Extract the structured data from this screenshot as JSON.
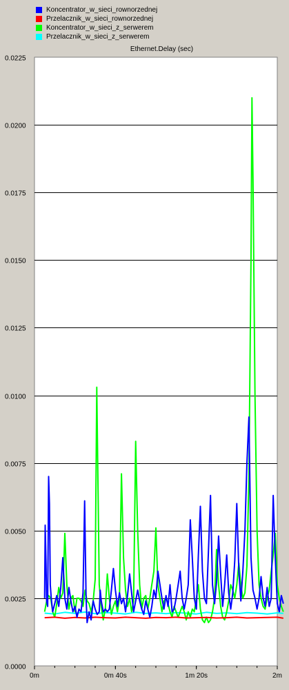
{
  "chart_data": {
    "type": "line",
    "title": "Ethernet.Delay (sec)",
    "xlabel": "",
    "ylabel": "",
    "xlim": [
      0,
      120
    ],
    "ylim": [
      0,
      0.0225
    ],
    "x_ticks": [
      {
        "value": 0,
        "label": "0m"
      },
      {
        "value": 40,
        "label": "0m 40s"
      },
      {
        "value": 80,
        "label": "1m 20s"
      },
      {
        "value": 120,
        "label": "2m"
      }
    ],
    "y_ticks": [
      {
        "value": 0,
        "label": "0.0000"
      },
      {
        "value": 0.0025,
        "label": "0.0025"
      },
      {
        "value": 0.005,
        "label": "0.0050"
      },
      {
        "value": 0.0075,
        "label": "0.0075"
      },
      {
        "value": 0.01,
        "label": "0.0100"
      },
      {
        "value": 0.0125,
        "label": "0.0125"
      },
      {
        "value": 0.015,
        "label": "0.0150"
      },
      {
        "value": 0.0175,
        "label": "0.0175"
      },
      {
        "value": 0.02,
        "label": "0.0200"
      },
      {
        "value": 0.0225,
        "label": "0.0225"
      }
    ],
    "grid": true,
    "legend_position": "top-left",
    "series": [
      {
        "name": "Koncentrator_w_sieci_rownorzednej",
        "color": "#0000ff",
        "points": [
          [
            5,
            0.0025
          ],
          [
            5.3,
            0.0052
          ],
          [
            5.7,
            0.0038
          ],
          [
            6,
            0.0024
          ],
          [
            6.5,
            0.0022
          ],
          [
            7,
            0.007
          ],
          [
            7.4,
            0.006
          ],
          [
            7.8,
            0.003
          ],
          [
            8.3,
            0.0025
          ],
          [
            9,
            0.002
          ],
          [
            10,
            0.0023
          ],
          [
            11,
            0.0026
          ],
          [
            12,
            0.0022
          ],
          [
            13,
            0.0029
          ],
          [
            14,
            0.004
          ],
          [
            15,
            0.0025
          ],
          [
            16,
            0.0021
          ],
          [
            17,
            0.0029
          ],
          [
            18,
            0.0024
          ],
          [
            19,
            0.002
          ],
          [
            20,
            0.0022
          ],
          [
            21,
            0.0018
          ],
          [
            22,
            0.0021
          ],
          [
            23,
            0.002
          ],
          [
            24,
            0.0027
          ],
          [
            24.8,
            0.0061
          ],
          [
            25.5,
            0.0025
          ],
          [
            26,
            0.0016
          ],
          [
            27,
            0.002
          ],
          [
            28,
            0.0017
          ],
          [
            29,
            0.0024
          ],
          [
            30,
            0.0021
          ],
          [
            31,
            0.0019
          ],
          [
            32,
            0.002
          ],
          [
            32.5,
            0.0028
          ],
          [
            33,
            0.0024
          ],
          [
            34,
            0.002
          ],
          [
            35,
            0.0021
          ],
          [
            36,
            0.002
          ],
          [
            37,
            0.0021
          ],
          [
            38,
            0.0028
          ],
          [
            39,
            0.0036
          ],
          [
            40,
            0.0028
          ],
          [
            41,
            0.0022
          ],
          [
            42,
            0.0027
          ],
          [
            43,
            0.0023
          ],
          [
            44,
            0.0025
          ],
          [
            45,
            0.002
          ],
          [
            46,
            0.0026
          ],
          [
            47,
            0.0034
          ],
          [
            48,
            0.0027
          ],
          [
            49,
            0.002
          ],
          [
            50,
            0.0024
          ],
          [
            51,
            0.0028
          ],
          [
            52,
            0.0024
          ],
          [
            53,
            0.0021
          ],
          [
            54,
            0.0019
          ],
          [
            55,
            0.0024
          ],
          [
            56,
            0.0021
          ],
          [
            57,
            0.0018
          ],
          [
            58,
            0.0022
          ],
          [
            59,
            0.0028
          ],
          [
            60,
            0.0025
          ],
          [
            61,
            0.0035
          ],
          [
            62,
            0.003
          ],
          [
            63,
            0.0025
          ],
          [
            64,
            0.0021
          ],
          [
            65,
            0.0026
          ],
          [
            66,
            0.0022
          ],
          [
            67,
            0.003
          ],
          [
            68,
            0.002
          ],
          [
            69,
            0.0021
          ],
          [
            70,
            0.0025
          ],
          [
            71,
            0.003
          ],
          [
            72,
            0.0035
          ],
          [
            73,
            0.0025
          ],
          [
            74,
            0.0021
          ],
          [
            75,
            0.0025
          ],
          [
            76,
            0.003
          ],
          [
            77,
            0.0054
          ],
          [
            78,
            0.004
          ],
          [
            79,
            0.0025
          ],
          [
            80,
            0.0021
          ],
          [
            81,
            0.0041
          ],
          [
            82,
            0.0059
          ],
          [
            83,
            0.0035
          ],
          [
            84,
            0.0025
          ],
          [
            85,
            0.0023
          ],
          [
            86,
            0.0043
          ],
          [
            87,
            0.0063
          ],
          [
            88,
            0.003
          ],
          [
            89,
            0.0023
          ],
          [
            90,
            0.0031
          ],
          [
            91,
            0.0048
          ],
          [
            92,
            0.0034
          ],
          [
            93,
            0.0022
          ],
          [
            94,
            0.003
          ],
          [
            95,
            0.0041
          ],
          [
            96,
            0.0027
          ],
          [
            97,
            0.0021
          ],
          [
            98,
            0.0027
          ],
          [
            99,
            0.0039
          ],
          [
            100,
            0.006
          ],
          [
            101,
            0.0035
          ],
          [
            102,
            0.0024
          ],
          [
            103,
            0.0035
          ],
          [
            104,
            0.005
          ],
          [
            105,
            0.0075
          ],
          [
            106,
            0.0092
          ],
          [
            107,
            0.004
          ],
          [
            108,
            0.0028
          ],
          [
            109,
            0.0025
          ],
          [
            110,
            0.0021
          ],
          [
            111,
            0.0025
          ],
          [
            112,
            0.0033
          ],
          [
            113,
            0.0025
          ],
          [
            114,
            0.0022
          ],
          [
            115,
            0.0029
          ],
          [
            116,
            0.0022
          ],
          [
            117,
            0.0025
          ],
          [
            118,
            0.0063
          ],
          [
            119,
            0.004
          ],
          [
            120,
            0.0023
          ],
          [
            121,
            0.002
          ],
          [
            122,
            0.0026
          ],
          [
            123,
            0.0023
          ]
        ]
      },
      {
        "name": "Przelacznik_w_sieci_rownorzednej",
        "color": "#ff0000",
        "points": [
          [
            5,
            0.00178
          ],
          [
            10,
            0.0018
          ],
          [
            15,
            0.00176
          ],
          [
            20,
            0.00179
          ],
          [
            25,
            0.00177
          ],
          [
            30,
            0.0018
          ],
          [
            35,
            0.00178
          ],
          [
            40,
            0.00177
          ],
          [
            45,
            0.0018
          ],
          [
            50,
            0.00178
          ],
          [
            55,
            0.00176
          ],
          [
            60,
            0.00179
          ],
          [
            65,
            0.00178
          ],
          [
            70,
            0.0018
          ],
          [
            75,
            0.00177
          ],
          [
            80,
            0.00178
          ],
          [
            85,
            0.00179
          ],
          [
            90,
            0.00177
          ],
          [
            95,
            0.00178
          ],
          [
            100,
            0.0018
          ],
          [
            105,
            0.00177
          ],
          [
            110,
            0.00178
          ],
          [
            115,
            0.00179
          ],
          [
            120,
            0.0018
          ],
          [
            123,
            0.00176
          ]
        ]
      },
      {
        "name": "Koncentrator_w_sieci_z_serwerem",
        "color": "#00ff00",
        "points": [
          [
            5,
            0.002
          ],
          [
            6,
            0.0024
          ],
          [
            7,
            0.0026
          ],
          [
            8,
            0.0025
          ],
          [
            9,
            0.002
          ],
          [
            10,
            0.0018
          ],
          [
            11,
            0.0023
          ],
          [
            12,
            0.0029
          ],
          [
            13,
            0.0025
          ],
          [
            14,
            0.0027
          ],
          [
            15,
            0.0049
          ],
          [
            16,
            0.003
          ],
          [
            17,
            0.0021
          ],
          [
            18,
            0.0025
          ],
          [
            19,
            0.0026
          ],
          [
            20,
            0.002
          ],
          [
            21,
            0.0025
          ],
          [
            22,
            0.0025
          ],
          [
            23,
            0.0024
          ],
          [
            24,
            0.0022
          ],
          [
            25,
            0.0028
          ],
          [
            26,
            0.0024
          ],
          [
            27,
            0.0023
          ],
          [
            28,
            0.002
          ],
          [
            29,
            0.0024
          ],
          [
            30,
            0.0032
          ],
          [
            30.8,
            0.0103
          ],
          [
            31.5,
            0.006
          ],
          [
            32,
            0.003
          ],
          [
            33,
            0.0022
          ],
          [
            34,
            0.0017
          ],
          [
            35,
            0.0021
          ],
          [
            36,
            0.0034
          ],
          [
            37,
            0.0025
          ],
          [
            38,
            0.0019
          ],
          [
            39,
            0.0022
          ],
          [
            40,
            0.0024
          ],
          [
            41,
            0.002
          ],
          [
            42,
            0.0025
          ],
          [
            43,
            0.0071
          ],
          [
            44,
            0.004
          ],
          [
            45,
            0.0028
          ],
          [
            46,
            0.0022
          ],
          [
            47,
            0.0025
          ],
          [
            48,
            0.002
          ],
          [
            49,
            0.0024
          ],
          [
            50,
            0.0083
          ],
          [
            51,
            0.005
          ],
          [
            52,
            0.003
          ],
          [
            53,
            0.0021
          ],
          [
            54,
            0.0025
          ],
          [
            55,
            0.0026
          ],
          [
            56,
            0.0021
          ],
          [
            57,
            0.0025
          ],
          [
            58,
            0.003
          ],
          [
            59,
            0.0035
          ],
          [
            60,
            0.0051
          ],
          [
            61,
            0.003
          ],
          [
            62,
            0.0025
          ],
          [
            63,
            0.002
          ],
          [
            64,
            0.0024
          ],
          [
            65,
            0.0025
          ],
          [
            66,
            0.0023
          ],
          [
            67,
            0.002
          ],
          [
            68,
            0.0018
          ],
          [
            69,
            0.0022
          ],
          [
            70,
            0.002
          ],
          [
            71,
            0.0018
          ],
          [
            72,
            0.002
          ],
          [
            73,
            0.0022
          ],
          [
            74,
            0.002
          ],
          [
            75,
            0.0017
          ],
          [
            76,
            0.002
          ],
          [
            77,
            0.0018
          ],
          [
            78,
            0.0021
          ],
          [
            79,
            0.002
          ],
          [
            80,
            0.0025
          ],
          [
            81,
            0.003
          ],
          [
            82,
            0.0021
          ],
          [
            83,
            0.0017
          ],
          [
            84,
            0.0016
          ],
          [
            85,
            0.0018
          ],
          [
            86,
            0.0016
          ],
          [
            87,
            0.0017
          ],
          [
            88,
            0.002
          ],
          [
            89,
            0.0025
          ],
          [
            90,
            0.0043
          ],
          [
            91,
            0.003
          ],
          [
            92,
            0.0022
          ],
          [
            93,
            0.0018
          ],
          [
            94,
            0.0017
          ],
          [
            95,
            0.002
          ],
          [
            96,
            0.0024
          ],
          [
            97,
            0.003
          ],
          [
            98,
            0.0028
          ],
          [
            99,
            0.0025
          ],
          [
            100,
            0.003
          ],
          [
            101,
            0.0038
          ],
          [
            102,
            0.003
          ],
          [
            103,
            0.0025
          ],
          [
            104,
            0.0027
          ],
          [
            105,
            0.0037
          ],
          [
            106,
            0.007
          ],
          [
            107,
            0.015
          ],
          [
            107.5,
            0.021
          ],
          [
            108,
            0.018
          ],
          [
            109,
            0.01
          ],
          [
            110,
            0.005
          ],
          [
            111,
            0.003
          ],
          [
            112,
            0.0025
          ],
          [
            113,
            0.0022
          ],
          [
            114,
            0.0021
          ],
          [
            115,
            0.0025
          ],
          [
            116,
            0.0028
          ],
          [
            117,
            0.0035
          ],
          [
            118,
            0.0041
          ],
          [
            119,
            0.0049
          ],
          [
            120,
            0.003
          ],
          [
            121,
            0.0025
          ],
          [
            122,
            0.0022
          ],
          [
            123,
            0.002
          ]
        ]
      },
      {
        "name": "Przelacznik_w_sieci_z_serwerem",
        "color": "#00ffff",
        "points": [
          [
            5,
            0.00195
          ],
          [
            10,
            0.00192
          ],
          [
            15,
            0.00198
          ],
          [
            20,
            0.00194
          ],
          [
            25,
            0.00199
          ],
          [
            30,
            0.00193
          ],
          [
            35,
            0.00197
          ],
          [
            40,
            0.00195
          ],
          [
            45,
            0.00192
          ],
          [
            50,
            0.00198
          ],
          [
            55,
            0.00194
          ],
          [
            60,
            0.00196
          ],
          [
            65,
            0.00193
          ],
          [
            70,
            0.00197
          ],
          [
            75,
            0.00195
          ],
          [
            80,
            0.00192
          ],
          [
            85,
            0.00198
          ],
          [
            90,
            0.00194
          ],
          [
            95,
            0.00196
          ],
          [
            100,
            0.00193
          ],
          [
            105,
            0.00197
          ],
          [
            110,
            0.00195
          ],
          [
            115,
            0.00192
          ],
          [
            120,
            0.00196
          ],
          [
            123,
            0.00194
          ]
        ]
      }
    ]
  }
}
